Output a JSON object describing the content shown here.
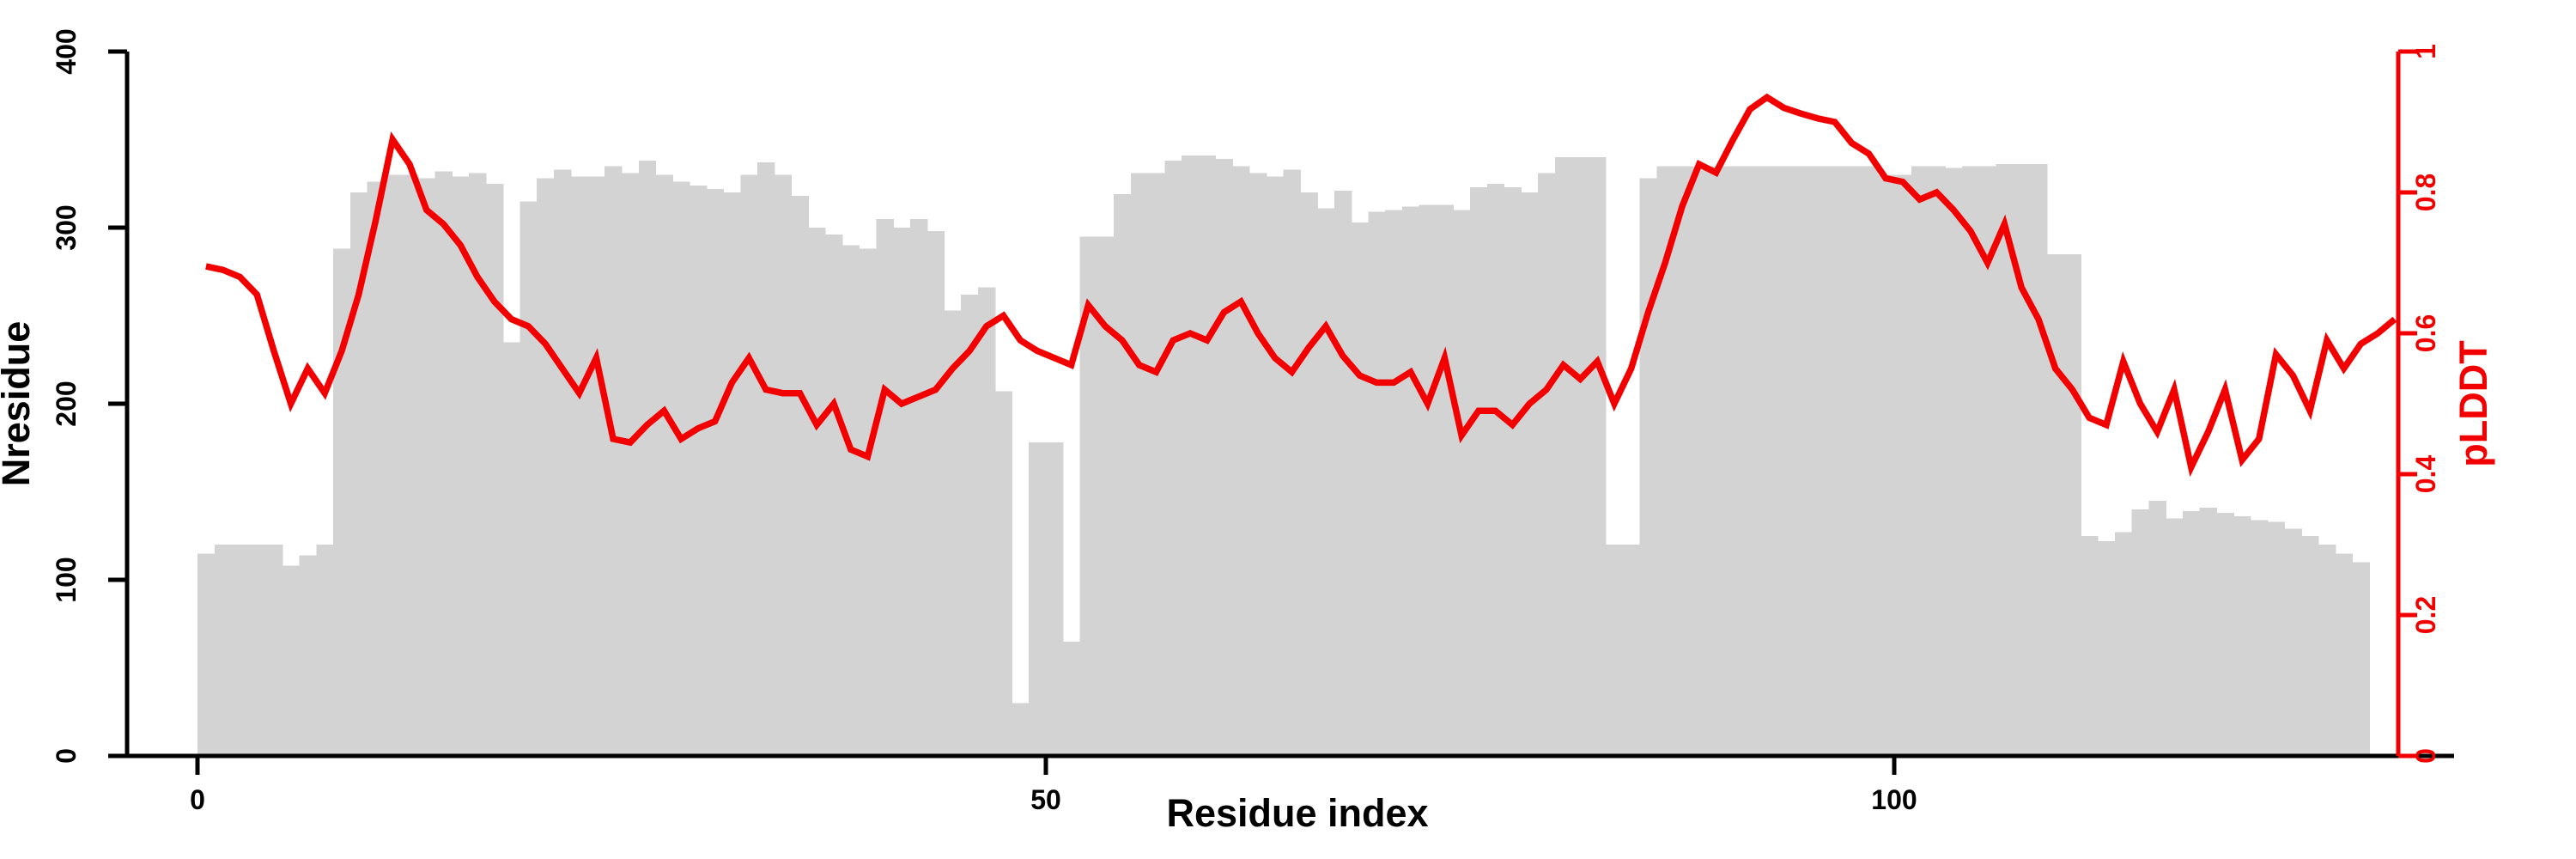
{
  "chart_data": {
    "type": "bar",
    "subtype": "dual-axis bar+line, per-residue profile",
    "title": "",
    "xlabel": "Residue index",
    "ylabel_left": "Nresidue",
    "ylabel_right": "pLDDT",
    "x_axis": {
      "ticks": [
        0,
        50,
        100
      ],
      "tick_labels": [
        "0",
        "50",
        "100"
      ],
      "range": [
        0,
        130
      ]
    },
    "left_axis": {
      "ticks": [
        0,
        100,
        200,
        300,
        400
      ],
      "tick_labels": [
        "0",
        "100",
        "200",
        "300",
        "400"
      ],
      "range": [
        0,
        400
      ]
    },
    "right_axis": {
      "ticks": [
        0,
        0.2,
        0.4,
        0.6,
        0.8,
        1
      ],
      "tick_labels": [
        "0",
        "0.2",
        "0.4",
        "0.6",
        "0.8",
        "1"
      ],
      "range": [
        0,
        1
      ]
    },
    "grid": false,
    "legend": "none",
    "colors": {
      "bar": "#d3d3d3",
      "line": "#f20000",
      "axis": "#000000",
      "right_axis": "#f20000",
      "background": "#ffffff"
    },
    "residue_index_start": 1,
    "series": [
      {
        "name": "Nresidue",
        "type": "bar",
        "axis": "left",
        "values": [
          115,
          120,
          120,
          120,
          120,
          108,
          114,
          120,
          288,
          320,
          326,
          330,
          330,
          328,
          332,
          329,
          331,
          325,
          235,
          315,
          328,
          333,
          329,
          329,
          335,
          331,
          338,
          330,
          326,
          324,
          322,
          320,
          330,
          337,
          330,
          318,
          300,
          296,
          290,
          288,
          305,
          300,
          305,
          298,
          253,
          262,
          266,
          207,
          30,
          178,
          178,
          65,
          295,
          295,
          319,
          331,
          331,
          338,
          341,
          341,
          339,
          335,
          331,
          329,
          333,
          320,
          311,
          321,
          303,
          309,
          310,
          312,
          313,
          313,
          310,
          323,
          325,
          323,
          320,
          331,
          340,
          340,
          340,
          120,
          120,
          328,
          335,
          335,
          335,
          335,
          335,
          335,
          335,
          335,
          335,
          335,
          335,
          335,
          335,
          330,
          330,
          335,
          335,
          334,
          335,
          335,
          336,
          336,
          336,
          285,
          285,
          125,
          122,
          127,
          140,
          145,
          135,
          139,
          141,
          138,
          136,
          134,
          133,
          129,
          125,
          120,
          115,
          110,
          0,
          0
        ]
      },
      {
        "name": "pLDDT",
        "type": "line",
        "axis": "right",
        "values": [
          0.695,
          0.69,
          0.68,
          0.655,
          0.575,
          0.5,
          0.55,
          0.515,
          0.575,
          0.655,
          0.76,
          0.875,
          0.84,
          0.775,
          0.755,
          0.725,
          0.68,
          0.645,
          0.62,
          0.61,
          0.585,
          0.55,
          0.515,
          0.565,
          0.45,
          0.445,
          0.47,
          0.49,
          0.45,
          0.465,
          0.475,
          0.53,
          0.565,
          0.52,
          0.515,
          0.515,
          0.47,
          0.5,
          0.435,
          0.425,
          0.52,
          0.5,
          0.51,
          0.52,
          0.55,
          0.575,
          0.61,
          0.625,
          0.59,
          0.575,
          0.565,
          0.555,
          0.64,
          0.61,
          0.59,
          0.555,
          0.545,
          0.59,
          0.6,
          0.59,
          0.63,
          0.645,
          0.6,
          0.565,
          0.545,
          0.58,
          0.61,
          0.568,
          0.54,
          0.53,
          0.53,
          0.545,
          0.5,
          0.565,
          0.455,
          0.49,
          0.49,
          0.47,
          0.5,
          0.52,
          0.555,
          0.535,
          0.56,
          0.5,
          0.55,
          0.63,
          0.7,
          0.78,
          0.84,
          0.828,
          0.875,
          0.918,
          0.935,
          0.92,
          0.912,
          0.905,
          0.9,
          0.87,
          0.855,
          0.82,
          0.815,
          0.79,
          0.8,
          0.775,
          0.745,
          0.7,
          0.755,
          0.665,
          0.62,
          0.55,
          0.52,
          0.48,
          0.47,
          0.56,
          0.5,
          0.46,
          0.52,
          0.41,
          0.46,
          0.52,
          0.42,
          0.45,
          0.57,
          0.54,
          0.49,
          0.59,
          0.55,
          0.585,
          0.6,
          0.62
        ]
      }
    ]
  }
}
